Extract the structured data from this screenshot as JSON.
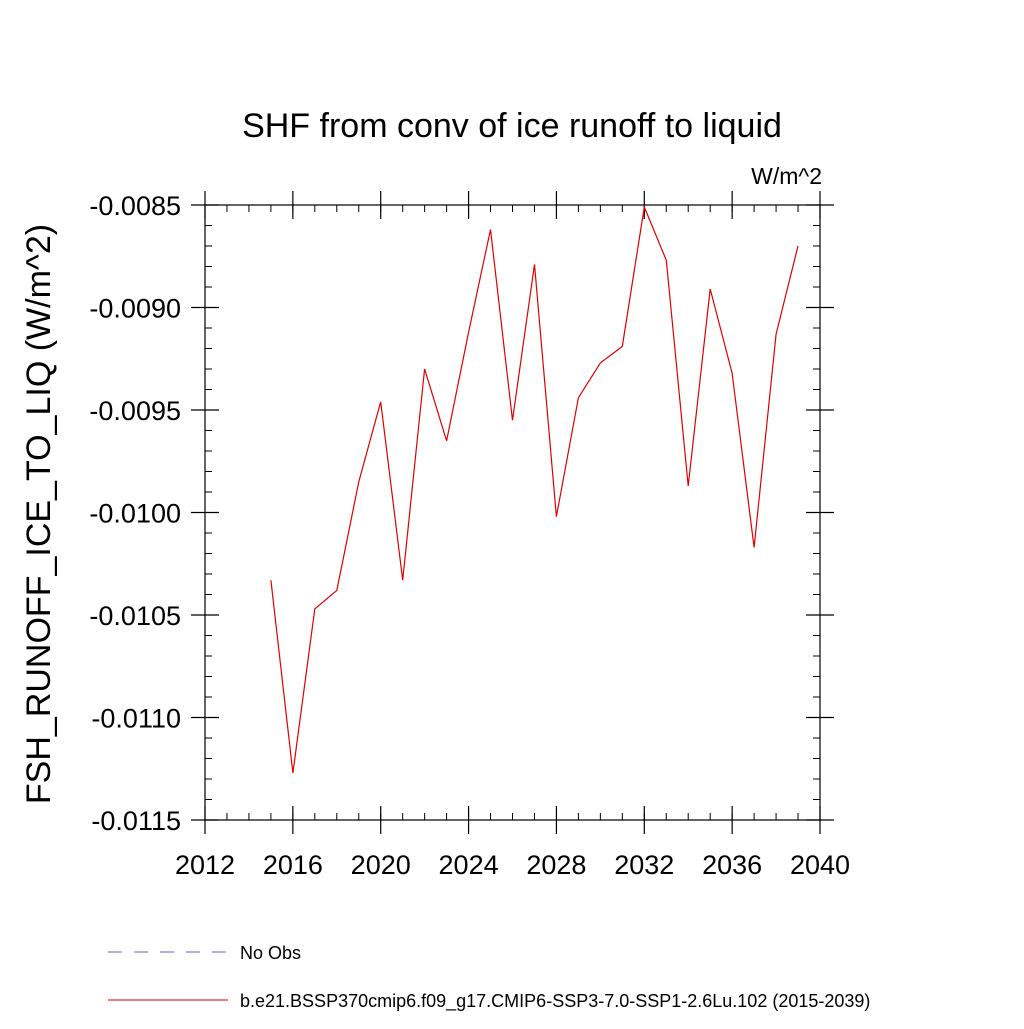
{
  "chart_data": {
    "type": "line",
    "title": "SHF from conv of ice runoff to liquid",
    "units_label": "W/m^2",
    "xlabel": "",
    "ylabel": "FSH_RUNOFF_ICE_TO_LIQ  (W/m^2)",
    "xlim": [
      2012,
      2040
    ],
    "ylim": [
      -0.0115,
      -0.0085
    ],
    "x_ticks": [
      2012,
      2016,
      2020,
      2024,
      2028,
      2032,
      2036,
      2040
    ],
    "x_tick_labels": [
      "2012",
      "2016",
      "2020",
      "2024",
      "2028",
      "2032",
      "2036",
      "2040"
    ],
    "y_ticks": [
      -0.0085,
      -0.009,
      -0.0095,
      -0.01,
      -0.0105,
      -0.011,
      -0.0115
    ],
    "y_tick_labels": [
      "-0.0085",
      "-0.0090",
      "-0.0095",
      "-0.0100",
      "-0.0105",
      "-0.0110",
      "-0.0115"
    ],
    "grid": false,
    "legend_position": "bottom",
    "series": [
      {
        "name": "No Obs",
        "color": "#6a5acd",
        "dash": "dashed",
        "x": [],
        "values": []
      },
      {
        "name": "b.e21.BSSP370cmip6.f09_g17.CMIP6-SSP3-7.0-SSP1-2.6Lu.102 (2015-2039)",
        "color": "#e00000",
        "dash": "solid",
        "x": [
          2015,
          2016,
          2017,
          2018,
          2019,
          2020,
          2021,
          2022,
          2023,
          2024,
          2025,
          2026,
          2027,
          2028,
          2029,
          2030,
          2031,
          2032,
          2033,
          2034,
          2035,
          2036,
          2037,
          2038,
          2039
        ],
        "values": [
          -0.01033,
          -0.01127,
          -0.01047,
          -0.01038,
          -0.00985,
          -0.00946,
          -0.01033,
          -0.0093,
          -0.00965,
          -0.00912,
          -0.00862,
          -0.00955,
          -0.00879,
          -0.01002,
          -0.00944,
          -0.00927,
          -0.00919,
          -0.00851,
          -0.00877,
          -0.00987,
          -0.00891,
          -0.00932,
          -0.01017,
          -0.00913,
          -0.0087
        ]
      }
    ]
  }
}
